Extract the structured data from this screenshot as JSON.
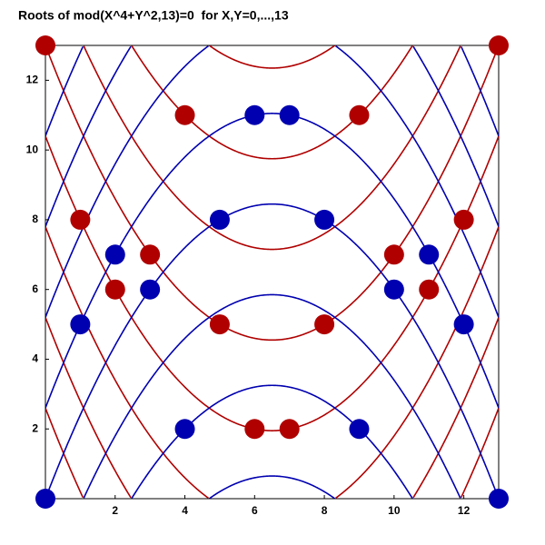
{
  "chart_data": {
    "type": "scatter",
    "title": "Roots of mod(X^4+Y^2,13)=0  for X,Y=0,...,13",
    "xlim": [
      0,
      13
    ],
    "ylim": [
      0,
      13
    ],
    "xticks": [
      2,
      4,
      6,
      8,
      10,
      12
    ],
    "yticks": [
      2,
      4,
      6,
      8,
      10,
      12
    ],
    "marker_radius": 11,
    "series": [
      {
        "color": "#b00000",
        "x": [
          0,
          13,
          4,
          9,
          1,
          12,
          3,
          10,
          2,
          11,
          5,
          8,
          6,
          7
        ],
        "values": [
          13,
          13,
          11,
          11,
          8,
          8,
          7,
          7,
          6,
          6,
          5,
          5,
          2,
          2
        ]
      },
      {
        "color": "#0000b0",
        "x": [
          0,
          13,
          6,
          7,
          5,
          8,
          2,
          11,
          3,
          10,
          1,
          12,
          4,
          9
        ],
        "values": [
          0,
          0,
          11,
          11,
          8,
          8,
          7,
          7,
          6,
          6,
          5,
          5,
          2,
          2
        ]
      }
    ],
    "curves": [
      {
        "color": "#b00000",
        "sign": 1,
        "a": 0.2,
        "x0": 6.5,
        "period": 13,
        "offsets": [
          1.95,
          4.55,
          7.15,
          9.75,
          12.35
        ]
      },
      {
        "color": "#0000b0",
        "sign": -1,
        "a": 0.2,
        "x0": 6.5,
        "period": 13,
        "offsets": [
          0.65,
          3.25,
          5.85,
          8.45,
          11.05
        ]
      }
    ]
  }
}
